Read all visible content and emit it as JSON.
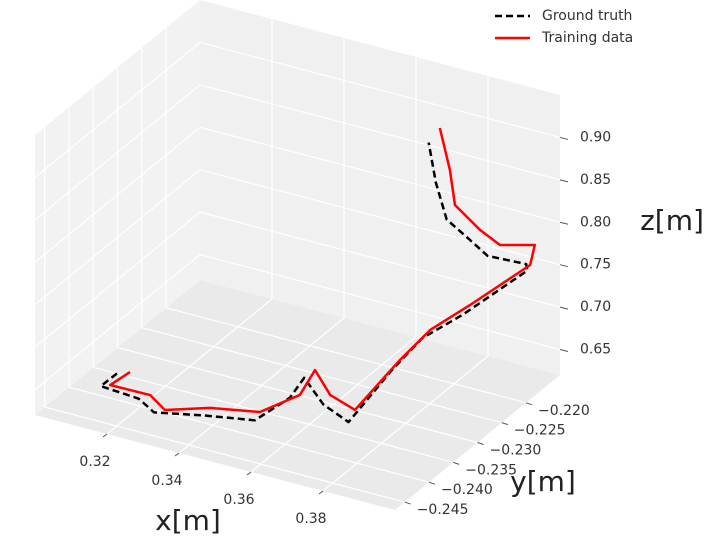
{
  "chart_data": {
    "type": "line3d",
    "xlabel": "x[m]",
    "ylabel": "y[m]",
    "zlabel": "z[m]",
    "xlim": [
      0.3,
      0.4
    ],
    "ylim": [
      -0.247,
      -0.213
    ],
    "zlim": [
      0.62,
      0.95
    ],
    "xticks": [
      0.32,
      0.34,
      0.36,
      0.38
    ],
    "yticks": [
      {
        "value": -0.245,
        "label": "−0.245"
      },
      {
        "value": -0.24,
        "label": "−0.240"
      },
      {
        "value": -0.235,
        "label": "−0.235"
      },
      {
        "value": -0.23,
        "label": "−0.230"
      },
      {
        "value": -0.225,
        "label": "−0.225"
      },
      {
        "value": -0.22,
        "label": "−0.220"
      }
    ],
    "zticks": [
      0.65,
      {
        "value": 0.7,
        "label": "0.70"
      },
      0.75,
      {
        "value": 0.8,
        "label": "0.80"
      },
      0.85,
      {
        "value": 0.9,
        "label": "0.90"
      }
    ],
    "grid": true,
    "legend": "upper right",
    "series": [
      {
        "name": "Ground truth",
        "color": "#000000",
        "dashed": true,
        "x": [
          0.312,
          0.3075,
          0.318,
          0.325,
          0.339,
          0.353,
          0.36,
          0.364,
          0.372,
          0.379,
          0.383,
          0.386,
          0.392,
          0.399,
          0.396,
          0.388,
          0.386,
          0.382,
          0.379,
          0.377
        ],
        "y": [
          -0.239,
          -0.239,
          -0.239,
          -0.241,
          -0.241,
          -0.241,
          -0.239,
          -0.239,
          -0.241,
          -0.241,
          -0.235,
          -0.231,
          -0.227,
          -0.219,
          -0.217,
          -0.219,
          -0.221,
          -0.223,
          -0.223,
          -0.223
        ],
        "z": [
          0.645,
          0.625,
          0.622,
          0.623,
          0.635,
          0.645,
          0.67,
          0.698,
          0.685,
          0.672,
          0.71,
          0.732,
          0.748,
          0.77,
          0.765,
          0.775,
          0.8,
          0.83,
          0.87,
          0.915
        ]
      },
      {
        "name": "Training data",
        "color": "#ff0000",
        "dashed": false,
        "x": [
          0.3156,
          0.3101,
          0.3212,
          0.328,
          0.3405,
          0.3544,
          0.3628,
          0.367,
          0.3739,
          0.3808,
          0.3852,
          0.3882,
          0.3939,
          0.3998,
          0.3984,
          0.3914,
          0.3886,
          0.3843,
          0.3829,
          0.3801
        ],
        "y": [
          -0.239,
          -0.239,
          -0.239,
          -0.241,
          -0.241,
          -0.241,
          -0.239,
          -0.239,
          -0.241,
          -0.241,
          -0.235,
          -0.231,
          -0.227,
          -0.219,
          -0.217,
          -0.219,
          -0.221,
          -0.223,
          -0.223,
          -0.223
        ],
        "z": [
          0.6506,
          0.6292,
          0.6298,
          0.6292,
          0.6456,
          0.6564,
          0.6765,
          0.7106,
          0.6983,
          0.6884,
          0.7241,
          0.7441,
          0.7612,
          0.7775,
          0.7902,
          0.7916,
          0.8155,
          0.8496,
          0.8893,
          0.9356
        ]
      }
    ]
  }
}
